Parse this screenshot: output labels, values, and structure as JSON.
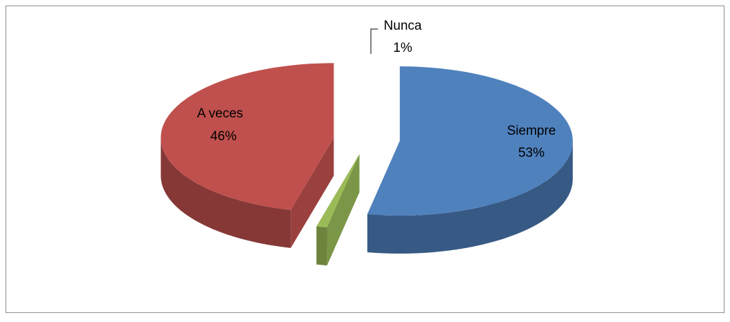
{
  "chart_data": {
    "type": "pie3d",
    "categories": [
      "Siempre",
      "Nunca",
      "A veces"
    ],
    "values": [
      53,
      1,
      46
    ],
    "value_labels": [
      "53%",
      "1%",
      "46%"
    ],
    "colors": [
      "#4f81bd",
      "#9bbb59",
      "#c0504d"
    ]
  }
}
